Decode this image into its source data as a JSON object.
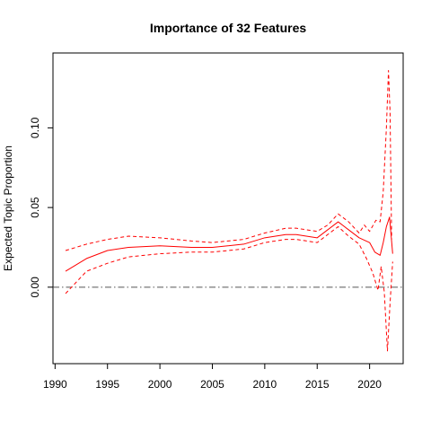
{
  "chart_data": {
    "type": "line",
    "title": "Importance of 32 Features",
    "xlabel": "",
    "ylabel": "Expected Topic Proportion",
    "xlim": [
      1989.8,
      2023.2
    ],
    "ylim": [
      -0.048,
      0.147
    ],
    "x_ticks": [
      1990,
      1995,
      2000,
      2005,
      2010,
      2015,
      2020
    ],
    "y_ticks": [
      0.0,
      0.05,
      0.1
    ],
    "y_tick_labels": [
      "0.00",
      "0.05",
      "0.10"
    ],
    "grid": false,
    "reference_line": {
      "y": 0.0,
      "style": "dashdot",
      "color": "#555555"
    },
    "series": [
      {
        "role": "estimate",
        "style": "solid",
        "color": "#ff0000",
        "x": [
          1991,
          1993,
          1995,
          1997,
          2000,
          2003,
          2005,
          2008,
          2010,
          2012,
          2013,
          2015,
          2016,
          2017,
          2018,
          2019,
          2020,
          2020.5,
          2021,
          2021.3,
          2021.6,
          2021.9,
          2022.2
        ],
        "y": [
          0.01,
          0.018,
          0.023,
          0.025,
          0.026,
          0.025,
          0.025,
          0.027,
          0.031,
          0.033,
          0.033,
          0.031,
          0.036,
          0.041,
          0.036,
          0.031,
          0.028,
          0.022,
          0.02,
          0.028,
          0.038,
          0.044,
          0.021
        ]
      },
      {
        "role": "upper-ci",
        "style": "dashed",
        "color": "#ff0000",
        "x": [
          1991,
          1993,
          1995,
          1997,
          2000,
          2003,
          2005,
          2008,
          2010,
          2012,
          2013,
          2015,
          2016,
          2017,
          2018,
          2019,
          2019.5,
          2020,
          2020.6,
          2021,
          2021.3,
          2021.6,
          2021.8,
          2021.95,
          2022.1
        ],
        "y": [
          0.023,
          0.027,
          0.03,
          0.032,
          0.031,
          0.029,
          0.028,
          0.03,
          0.034,
          0.037,
          0.037,
          0.035,
          0.039,
          0.046,
          0.041,
          0.034,
          0.039,
          0.035,
          0.042,
          0.041,
          0.06,
          0.1,
          0.136,
          0.11,
          0.03
        ]
      },
      {
        "role": "lower-ci",
        "style": "dashed",
        "color": "#ff0000",
        "x": [
          1991,
          1993,
          1995,
          1997,
          2000,
          2003,
          2005,
          2008,
          2010,
          2012,
          2013,
          2015,
          2016,
          2017,
          2018,
          2019,
          2019.7,
          2020.3,
          2020.8,
          2021.1,
          2021.4,
          2021.7,
          2021.95,
          2022.2
        ],
        "y": [
          -0.004,
          0.01,
          0.015,
          0.019,
          0.021,
          0.022,
          0.022,
          0.024,
          0.028,
          0.03,
          0.03,
          0.028,
          0.033,
          0.038,
          0.032,
          0.027,
          0.018,
          0.009,
          -0.002,
          0.013,
          -0.003,
          -0.04,
          -0.01,
          0.016
        ]
      }
    ]
  }
}
